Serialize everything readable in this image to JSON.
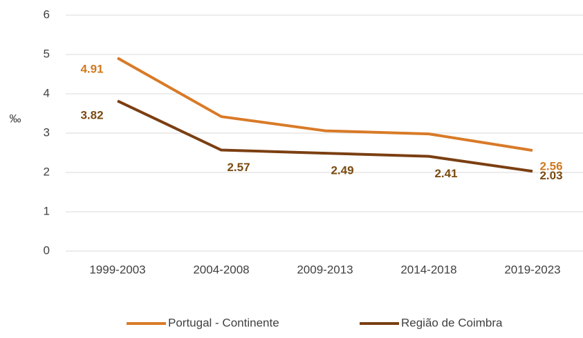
{
  "chart_data": {
    "type": "line",
    "y_label": "‰",
    "categories": [
      "1999-2003",
      "2004-2008",
      "2009-2013",
      "2014-2018",
      "2019-2023"
    ],
    "series": [
      {
        "name": "Portugal - Continente",
        "color": "#d97a27",
        "label_color": "#d0791f",
        "values": [
          4.91,
          3.42,
          3.06,
          2.98,
          2.56
        ],
        "value_labels": [
          "4.91",
          null,
          null,
          null,
          "2.56"
        ]
      },
      {
        "name": "Região de Coimbra",
        "color": "#7b3f12",
        "label_color": "#7a4a10",
        "values": [
          3.82,
          2.57,
          2.49,
          2.41,
          2.03
        ],
        "value_labels": [
          "3.82",
          "2.57",
          "2.49",
          "2.41",
          "2.03"
        ]
      }
    ],
    "ylim": [
      0,
      6
    ],
    "yticks": [
      0,
      1,
      2,
      3,
      4,
      5,
      6
    ],
    "grid": true,
    "legend": "bottom"
  }
}
